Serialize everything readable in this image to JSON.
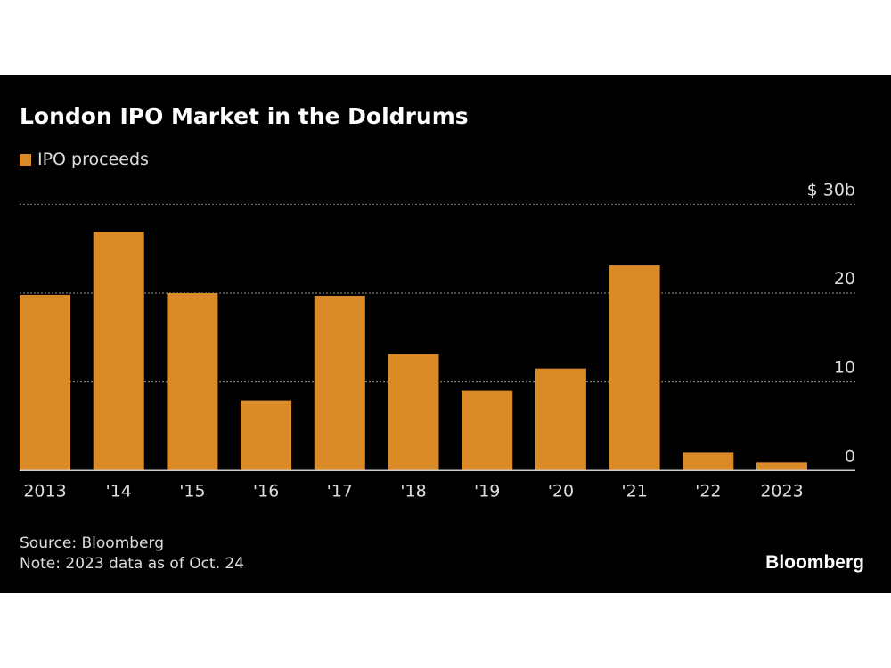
{
  "chart_data": {
    "type": "bar",
    "title": "London IPO Market in the Doldrums",
    "categories": [
      "2013",
      "'14",
      "'15",
      "'16",
      "'17",
      "'18",
      "'19",
      "'20",
      "'21",
      "'22",
      "2023"
    ],
    "series": [
      {
        "name": "IPO proceeds",
        "values": [
          19.8,
          26.9,
          20.0,
          7.9,
          19.7,
          13.1,
          9.0,
          11.5,
          23.1,
          2.0,
          0.9
        ]
      }
    ],
    "ylim": [
      0,
      30
    ],
    "yticks": [
      0,
      10,
      20,
      30
    ],
    "ytick_labels": [
      "0",
      "10",
      "20",
      "$ 30b"
    ],
    "y_axis_side": "right",
    "grid": true,
    "legend_placement": "top-left",
    "colors": {
      "bar": "#da8a26",
      "background": "#000000",
      "grid": "#777777"
    }
  },
  "footer": {
    "source": "Source: Bloomberg",
    "note": "Note: 2023 data as of Oct. 24",
    "logo": "Bloomberg"
  }
}
